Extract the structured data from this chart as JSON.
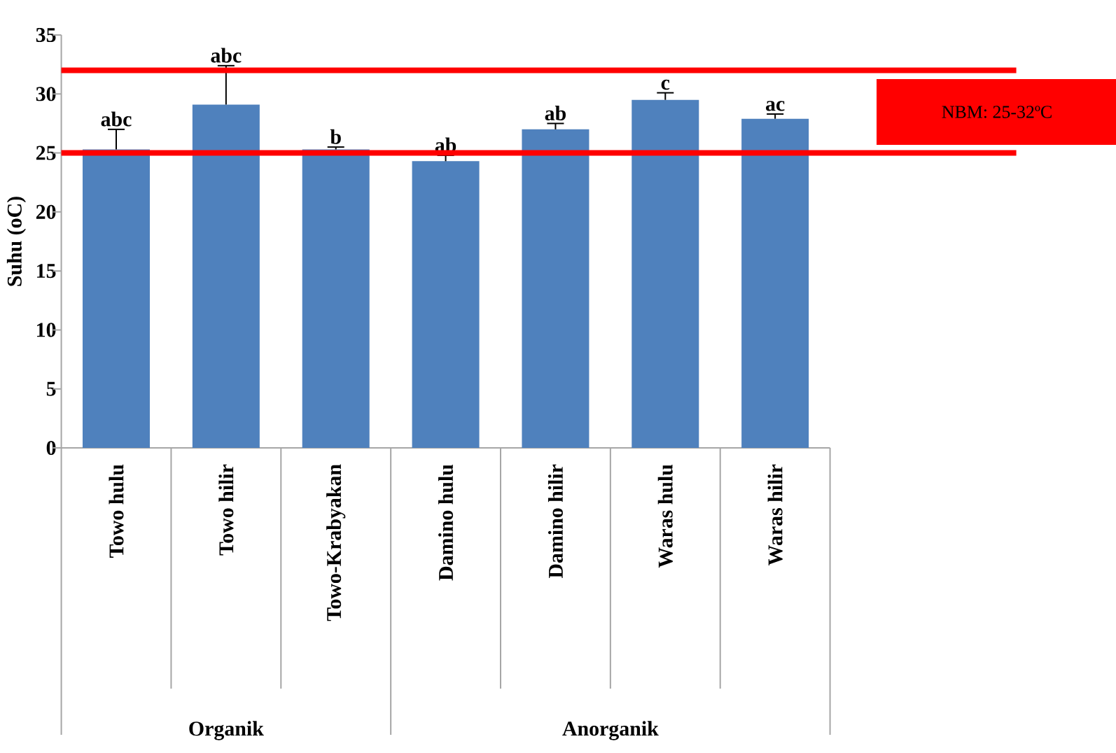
{
  "chart_data": {
    "type": "bar",
    "ylabel": "Suhu (oC)",
    "categories": [
      "Towo hulu",
      "Towo hilir",
      "Towo-Krabyakan",
      "Damino hulu",
      "Damino hilir",
      "Waras hulu",
      "Waras hilir"
    ],
    "values": [
      25.3,
      29.1,
      25.3,
      24.3,
      27.0,
      29.5,
      27.9
    ],
    "errors": [
      [
        25.3,
        27.0
      ],
      [
        29.1,
        32.4
      ],
      [
        25.3,
        25.5
      ],
      [
        24.3,
        24.8
      ],
      [
        27.0,
        27.5
      ],
      [
        29.5,
        30.1
      ],
      [
        27.9,
        28.3
      ]
    ],
    "value_labels": [
      "abc",
      "abc",
      "b",
      "ab",
      "ab",
      "c",
      "ac"
    ],
    "color": "#4f81bd",
    "ylim": [
      0,
      35
    ],
    "yticks": [
      0,
      5,
      10,
      15,
      20,
      25,
      30,
      35
    ],
    "grid": false,
    "ref_lines": [
      {
        "axis": "y",
        "value": 32,
        "color": "#ff0000"
      },
      {
        "axis": "y",
        "value": 25,
        "color": "#ff0000"
      }
    ],
    "annotations": [
      "NBM: 25-32ºC",
      "Organik",
      "Anorganik"
    ]
  }
}
